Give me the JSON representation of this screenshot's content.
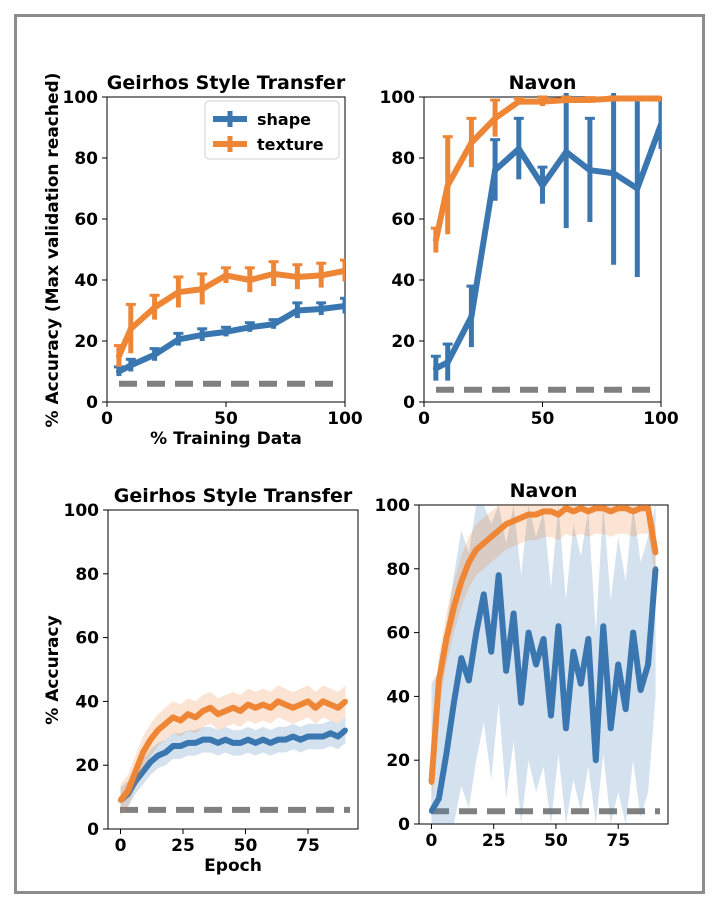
{
  "figure": {
    "ylabel_top": "% Accuracy (Max validation reached)",
    "ylabel_bottom": "% Accuracy"
  },
  "colors": {
    "shape": "#3a76b0",
    "texture": "#ef8636",
    "baseline": "#808080"
  },
  "legend": {
    "shape": "shape",
    "texture": "texture"
  },
  "chart_data": [
    {
      "id": "tl",
      "type": "line",
      "title": "Geirhos Style Transfer",
      "xlabel": "% Training Data",
      "xlim": [
        0,
        100
      ],
      "ylim": [
        0,
        100
      ],
      "xticks": [
        0,
        50,
        100
      ],
      "yticks": [
        0,
        20,
        40,
        60,
        80,
        100
      ],
      "xtick_labels": [
        "0",
        "50",
        "100"
      ],
      "ytick_labels": [
        "0",
        "20",
        "40",
        "60",
        "80",
        "100"
      ],
      "legend": true,
      "baseline": 6,
      "series": [
        {
          "name": "shape",
          "x": [
            5,
            10,
            20,
            30,
            40,
            50,
            60,
            70,
            80,
            90,
            100
          ],
          "y": [
            10,
            12,
            15.5,
            20.5,
            22,
            23,
            24.5,
            25.5,
            30,
            30.5,
            31.5
          ],
          "err": [
            1.5,
            2,
            2,
            2,
            2,
            1.5,
            1.5,
            1.5,
            2.5,
            2,
            2.5
          ]
        },
        {
          "name": "texture",
          "x": [
            5,
            10,
            20,
            30,
            40,
            50,
            60,
            70,
            80,
            90,
            100
          ],
          "y": [
            15,
            24,
            31,
            36,
            37,
            41.5,
            40,
            42,
            41,
            41.5,
            43
          ],
          "err": [
            3.5,
            8,
            4,
            5,
            5,
            2.5,
            4,
            4,
            4,
            4,
            3.5
          ]
        }
      ]
    },
    {
      "id": "tr",
      "type": "line",
      "title": "Navon",
      "xlabel": "",
      "xlim": [
        0,
        100
      ],
      "ylim": [
        0,
        100
      ],
      "xticks": [
        0,
        50,
        100
      ],
      "yticks": [
        0,
        20,
        40,
        60,
        80,
        100
      ],
      "xtick_labels": [
        "0",
        "50",
        "100"
      ],
      "ytick_labels": [
        "0",
        "20",
        "40",
        "60",
        "80",
        "100"
      ],
      "legend": false,
      "baseline": 4,
      "series": [
        {
          "name": "shape",
          "x": [
            5,
            10,
            20,
            30,
            40,
            50,
            60,
            70,
            80,
            90,
            100
          ],
          "y": [
            11,
            13,
            28,
            76,
            83,
            71,
            82,
            76,
            75,
            70,
            91
          ],
          "err": [
            4,
            6,
            10,
            10,
            10,
            6,
            25,
            17,
            30,
            29,
            8
          ]
        },
        {
          "name": "texture",
          "x": [
            5,
            10,
            20,
            30,
            40,
            50,
            60,
            70,
            80,
            90,
            100
          ],
          "y": [
            53,
            71,
            85,
            93,
            98.5,
            98.5,
            99,
            99,
            99.5,
            99.5,
            99.5
          ],
          "err": [
            4,
            16,
            8,
            6,
            1,
            1.5,
            1,
            0.8,
            0.5,
            0.5,
            0.5
          ]
        }
      ]
    },
    {
      "id": "bl",
      "type": "area",
      "title": "Geirhos Style Transfer",
      "xlabel": "Epoch",
      "xlim": [
        -5,
        95
      ],
      "ylim": [
        0,
        100
      ],
      "xticks": [
        0,
        25,
        50,
        75
      ],
      "yticks": [
        0,
        20,
        40,
        60,
        80,
        100
      ],
      "xtick_labels": [
        "0",
        "25",
        "50",
        "75"
      ],
      "ytick_labels": [
        "0",
        "20",
        "40",
        "60",
        "80",
        "100"
      ],
      "legend": false,
      "baseline": 6,
      "series": [
        {
          "name": "shape",
          "x": [
            0,
            3,
            6,
            9,
            12,
            15,
            18,
            21,
            24,
            27,
            30,
            33,
            36,
            39,
            42,
            45,
            48,
            51,
            54,
            57,
            60,
            63,
            66,
            69,
            72,
            75,
            78,
            81,
            84,
            87,
            90
          ],
          "y": [
            9,
            11,
            15,
            18,
            21,
            23,
            24,
            26,
            26,
            27,
            27,
            28,
            28,
            27,
            28,
            27,
            27,
            28,
            27,
            28,
            27,
            28,
            28,
            29,
            28,
            29,
            29,
            29,
            30,
            29,
            31
          ],
          "band": 4
        },
        {
          "name": "texture",
          "x": [
            0,
            3,
            6,
            9,
            12,
            15,
            18,
            21,
            24,
            27,
            30,
            33,
            36,
            39,
            42,
            45,
            48,
            51,
            54,
            57,
            60,
            63,
            66,
            69,
            72,
            75,
            78,
            81,
            84,
            87,
            90
          ],
          "y": [
            9,
            12,
            18,
            24,
            28,
            31,
            33,
            35,
            34,
            36,
            35,
            37,
            38,
            36,
            37,
            38,
            37,
            39,
            38,
            39,
            38,
            40,
            39,
            38,
            39,
            40,
            38,
            40,
            39,
            38,
            40
          ],
          "band": 5
        }
      ]
    },
    {
      "id": "br",
      "type": "area",
      "title": "Navon",
      "xlabel": "",
      "xlim": [
        -5,
        95
      ],
      "ylim": [
        0,
        100
      ],
      "xticks": [
        0,
        25,
        50,
        75
      ],
      "yticks": [
        0,
        20,
        40,
        60,
        80,
        100
      ],
      "xtick_labels": [
        "0",
        "25",
        "50",
        "75"
      ],
      "ytick_labels": [
        "0",
        "20",
        "40",
        "60",
        "80",
        "100"
      ],
      "legend": false,
      "baseline": 4,
      "series": [
        {
          "name": "shape",
          "x": [
            0,
            3,
            6,
            9,
            12,
            15,
            18,
            21,
            24,
            27,
            30,
            33,
            36,
            39,
            42,
            45,
            48,
            51,
            54,
            57,
            60,
            63,
            66,
            69,
            72,
            75,
            78,
            81,
            84,
            87,
            90
          ],
          "y": [
            4,
            8,
            22,
            38,
            52,
            45,
            60,
            72,
            54,
            78,
            48,
            66,
            38,
            60,
            50,
            58,
            34,
            62,
            30,
            54,
            44,
            58,
            20,
            62,
            30,
            50,
            36,
            60,
            42,
            50,
            80
          ],
          "band": 40
        },
        {
          "name": "texture",
          "x": [
            0,
            3,
            6,
            9,
            12,
            15,
            18,
            21,
            24,
            27,
            30,
            33,
            36,
            39,
            42,
            45,
            48,
            51,
            54,
            57,
            60,
            63,
            66,
            69,
            72,
            75,
            78,
            81,
            84,
            87,
            90
          ],
          "y": [
            13,
            45,
            58,
            68,
            76,
            82,
            86,
            88,
            90,
            92,
            94,
            95,
            96,
            97,
            97,
            98,
            98,
            97,
            99,
            98,
            99,
            98,
            99,
            99,
            98,
            99,
            99,
            98,
            99,
            99,
            85
          ],
          "band": 8
        }
      ]
    }
  ]
}
